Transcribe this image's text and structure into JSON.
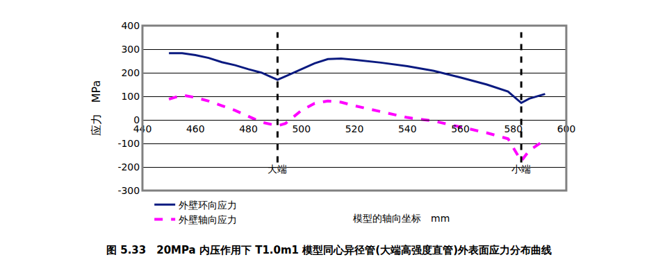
{
  "chart_data": {
    "type": "line",
    "title": "图 5.33　20MPa 内压作用下 T1.0m1 模型同心异径管(大端高强度直管)外表面应力分布曲线",
    "x_label": "模型的轴向坐标　mm",
    "y_label": "应力　MPa",
    "xlim": [
      440,
      600
    ],
    "xticks": [
      440,
      460,
      480,
      500,
      520,
      540,
      560,
      580,
      600
    ],
    "ylim": [
      -300,
      400
    ],
    "yticks": [
      -300,
      -200,
      -100,
      0,
      100,
      200,
      300,
      400
    ],
    "grid": true,
    "legend": "bottom left",
    "annotations": [
      {
        "x": 491,
        "text": "大端"
      },
      {
        "x": 583,
        "text": "小端"
      }
    ],
    "series": [
      {
        "name": "外壁环向应力",
        "color": "#0a1a80",
        "line_style": "solid",
        "x": [
          450,
          455,
          460,
          465,
          470,
          475,
          480,
          485,
          488,
          491,
          494,
          500,
          505,
          510,
          515,
          520,
          530,
          540,
          550,
          560,
          570,
          578,
          583,
          586,
          592
        ],
        "values": [
          283,
          283,
          275,
          263,
          245,
          232,
          215,
          200,
          185,
          170,
          185,
          215,
          240,
          258,
          260,
          255,
          243,
          228,
          208,
          180,
          150,
          120,
          72,
          90,
          110
        ]
      },
      {
        "name": "外壁轴向应力",
        "color": "#ff00ff",
        "line_style": "dash",
        "x": [
          450,
          455,
          460,
          465,
          470,
          475,
          480,
          485,
          491,
          494,
          500,
          505,
          510,
          515,
          520,
          530,
          540,
          550,
          560,
          570,
          578,
          583,
          586,
          592
        ],
        "values": [
          88,
          105,
          95,
          80,
          60,
          40,
          15,
          -10,
          -25,
          -15,
          40,
          70,
          80,
          75,
          60,
          35,
          10,
          -5,
          -30,
          -55,
          -80,
          -175,
          -130,
          -85
        ]
      }
    ]
  }
}
